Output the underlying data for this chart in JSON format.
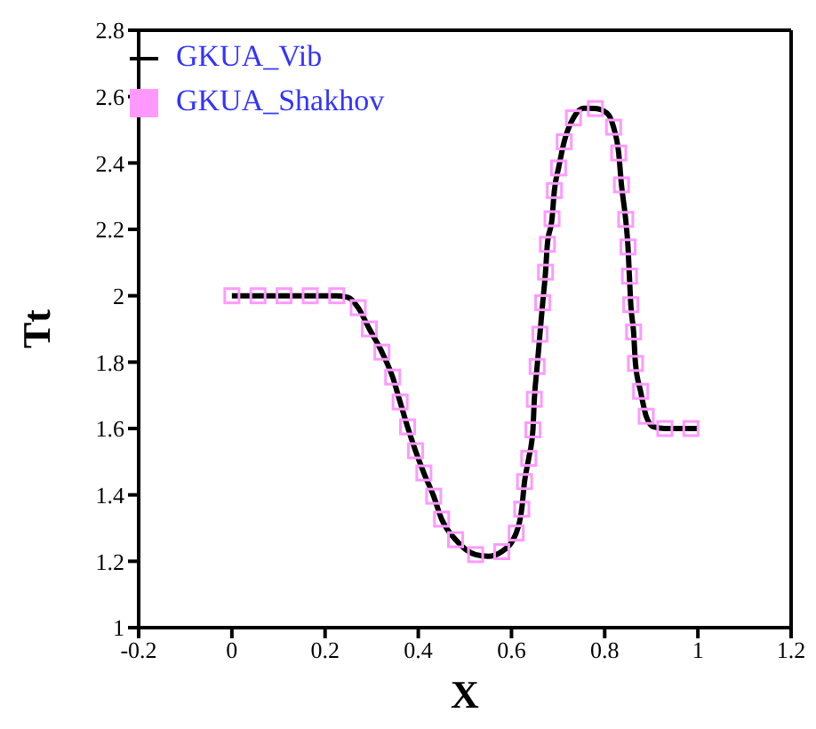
{
  "chart_data": {
    "type": "line",
    "xlabel": "X",
    "ylabel": "Tt",
    "xlim": [
      -0.2,
      1.2
    ],
    "xticks": [
      -0.2,
      0,
      0.2,
      0.4,
      0.6,
      0.8,
      1,
      1.2
    ],
    "ylim": [
      1,
      2.8
    ],
    "yticks": [
      1,
      1.2,
      1.4,
      1.6,
      1.8,
      2,
      2.2,
      2.4,
      2.6,
      2.8
    ],
    "grid": false,
    "legend": "top left",
    "series": [
      {
        "name": "GKUA_Vib",
        "color": "#000000",
        "marker": "none",
        "line_style": "solid",
        "x": [
          0,
          0.056,
          0.112,
          0.168,
          0.225,
          0.25,
          0.271,
          0.295,
          0.322,
          0.345,
          0.361,
          0.377,
          0.394,
          0.412,
          0.433,
          0.45,
          0.48,
          0.523,
          0.55,
          0.579,
          0.61,
          0.622,
          0.628,
          0.637,
          0.646,
          0.649,
          0.655,
          0.661,
          0.667,
          0.673,
          0.677,
          0.687,
          0.692,
          0.701,
          0.713,
          0.733,
          0.755,
          0.78,
          0.805,
          0.819,
          0.83,
          0.836,
          0.845,
          0.85,
          0.853,
          0.856,
          0.862,
          0.866,
          0.877,
          0.889,
          0.905,
          0.929,
          0.96,
          1
        ],
        "values": [
          2,
          2,
          2,
          2,
          2,
          1.995,
          1.964,
          1.9,
          1.83,
          1.755,
          1.68,
          1.605,
          1.533,
          1.466,
          1.396,
          1.327,
          1.265,
          1.22,
          1.215,
          1.229,
          1.285,
          1.357,
          1.44,
          1.51,
          1.596,
          1.688,
          1.787,
          1.884,
          1.979,
          2.071,
          2.155,
          2.232,
          2.317,
          2.385,
          2.464,
          2.536,
          2.565,
          2.564,
          2.55,
          2.508,
          2.43,
          2.334,
          2.23,
          2.147,
          2.059,
          1.973,
          1.891,
          1.796,
          1.712,
          1.637,
          1.605,
          1.6,
          1.6,
          1.6
        ]
      },
      {
        "name": "GKUA_Shakhov",
        "type": "scatter",
        "color": "#ff99ff",
        "marker": "square",
        "x": [
          0,
          0.056,
          0.112,
          0.168,
          0.225,
          0.271,
          0.295,
          0.322,
          0.345,
          0.361,
          0.377,
          0.394,
          0.412,
          0.433,
          0.45,
          0.48,
          0.523,
          0.579,
          0.61,
          0.622,
          0.628,
          0.637,
          0.646,
          0.649,
          0.655,
          0.661,
          0.667,
          0.673,
          0.677,
          0.687,
          0.692,
          0.701,
          0.713,
          0.733,
          0.78,
          0.819,
          0.83,
          0.836,
          0.845,
          0.85,
          0.853,
          0.856,
          0.862,
          0.866,
          0.877,
          0.889,
          0.929,
          0.985
        ],
        "values": [
          2,
          2,
          2,
          2,
          2,
          1.964,
          1.9,
          1.83,
          1.755,
          1.68,
          1.605,
          1.533,
          1.466,
          1.396,
          1.327,
          1.265,
          1.22,
          1.229,
          1.285,
          1.357,
          1.44,
          1.51,
          1.596,
          1.688,
          1.787,
          1.884,
          1.979,
          2.071,
          2.155,
          2.232,
          2.317,
          2.385,
          2.464,
          2.536,
          2.564,
          2.508,
          2.43,
          2.334,
          2.23,
          2.147,
          2.059,
          1.973,
          1.891,
          1.796,
          1.712,
          1.637,
          1.6,
          1.6
        ]
      }
    ]
  }
}
